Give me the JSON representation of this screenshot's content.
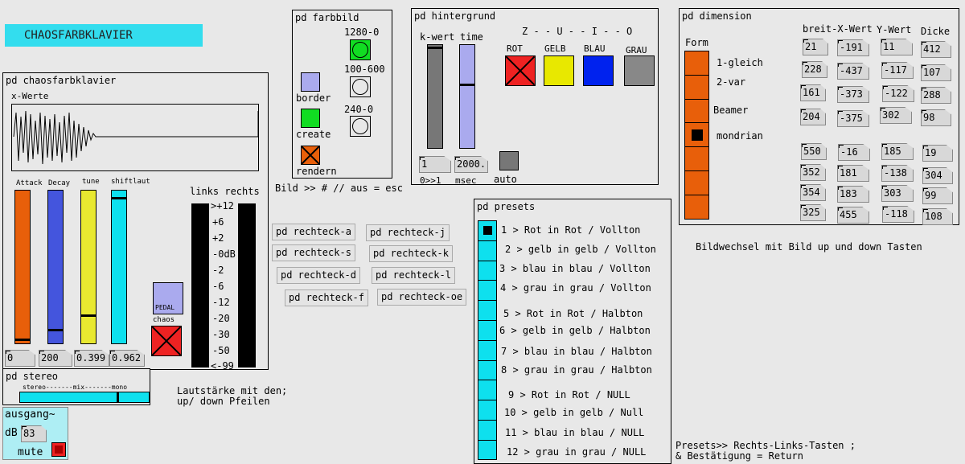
{
  "title_label": "CHAOSFARBKLAVIER",
  "chaos": {
    "title": "pd chaosfarbklavier",
    "xwerte": "x-Werte",
    "sliders": [
      "Attack",
      "Decay",
      "tune",
      "shiftlaut"
    ],
    "numbers": [
      "0",
      "200",
      "0.399",
      "0.962"
    ],
    "pedal": "PEDAL",
    "chaos": "chaos",
    "vu_header": "links rechts",
    "vu_scale": [
      ">+12",
      "+6",
      "+2",
      "-0dB",
      "-2",
      "-6",
      "-12",
      "-20",
      "-30",
      "-50",
      "<-99"
    ]
  },
  "stereo": {
    "title": "pd stereo",
    "scale": "stereo-------mix-------mono"
  },
  "ausgang": {
    "title": "ausgang~",
    "db": "dB",
    "value": "83",
    "mute": "mute"
  },
  "lautstaerke": [
    "Lautstärke mit den;",
    "up/ down Pfeilen"
  ],
  "farbbild": {
    "title": "pd farbbild",
    "res": [
      "1280-0",
      "100-600",
      "240-0"
    ],
    "labels": [
      "border",
      "create",
      "rendern"
    ]
  },
  "bild_esc": "Bild >> # // aus = esc",
  "rechtecke": [
    "pd rechteck-a",
    "pd rechteck-s",
    "pd rechteck-d",
    "pd rechteck-f",
    "pd rechteck-j",
    "pd rechteck-k",
    "pd rechteck-l",
    "pd rechteck-oe"
  ],
  "hintergrund": {
    "title": "pd hintergrund",
    "kwert": "k-wert",
    "time": "time",
    "zuio": "Z - - U - - I - - O",
    "colors": [
      "ROT",
      "GELB",
      "BLAU",
      "GRAU"
    ],
    "num1": "1",
    "num2": "2000.",
    "lbl1": "0>>1",
    "lbl2": "msec",
    "auto": "auto"
  },
  "presets": {
    "title": "pd presets",
    "items": [
      "1 > Rot in Rot / Vollton",
      "2 > gelb in gelb / Vollton",
      "3 > blau in blau / Vollton",
      "4 > grau in grau / Vollton",
      "5 > Rot in Rot / Halbton",
      "6 > gelb in gelb / Halbton",
      "7 > blau in blau / Halbton",
      "8 > grau in grau / Halbton",
      "9 > Rot in Rot / NULL",
      "10 > gelb in gelb / Null",
      "11 > blau in blau / NULL",
      "12 > grau in grau / NULL"
    ],
    "hint": [
      "Presets>> Rechts-Links-Tasten ;",
      "& Bestätigung = Return"
    ]
  },
  "dimension": {
    "title": "pd dimension",
    "form": "Form",
    "form_items": [
      "1-gleich",
      "2-var",
      "Beamer",
      "mondrian"
    ],
    "headers": [
      "breit-X-Wert",
      "Y-Wert",
      "Dicke"
    ],
    "col1": [
      "21",
      "228",
      "161",
      "204",
      "550",
      "352",
      "354",
      "325"
    ],
    "col2": [
      "-191",
      "-437",
      "-373",
      "-375",
      "-16",
      "181",
      "183",
      "455"
    ],
    "col3": [
      "11",
      "-117",
      "-122",
      "302",
      "185",
      "-138",
      "303",
      "-118"
    ],
    "col4": [
      "412",
      "107",
      "288",
      "98",
      "19",
      "304",
      "99",
      "108"
    ]
  },
  "bildwechsel": "Bildwechsel mit Bild up und down Tasten"
}
